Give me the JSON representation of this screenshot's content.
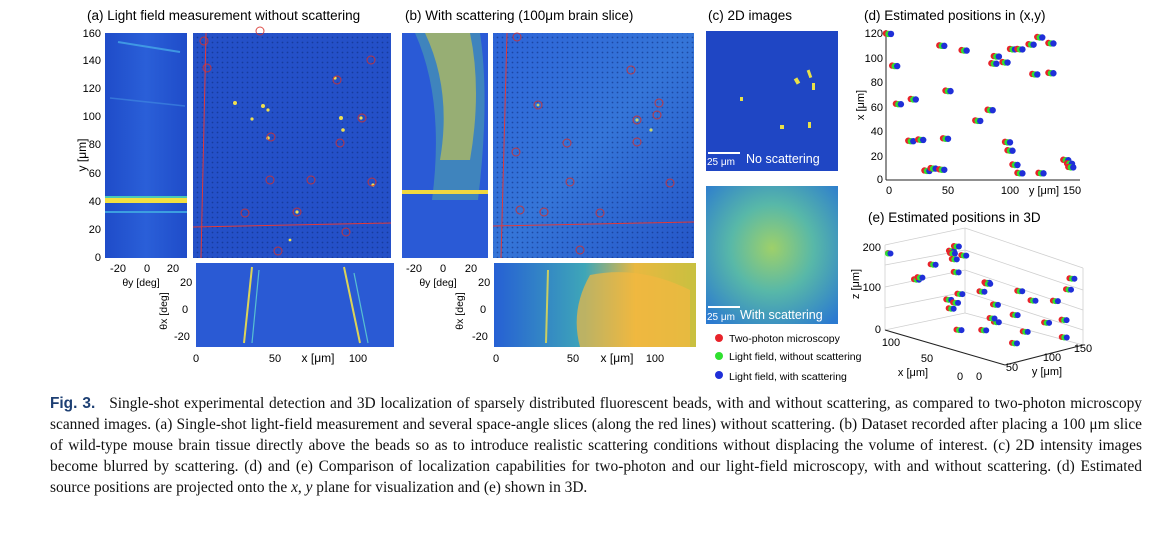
{
  "panels": {
    "a": {
      "title": "(a) Light field measurement without scattering"
    },
    "b": {
      "title": "(b) With scattering (100μm brain slice)"
    },
    "c": {
      "title": "(c) 2D images",
      "scale_bar": "25 μm",
      "label_top": "No scattering",
      "label_bottom": "With scattering"
    },
    "d": {
      "title": "(d) Estimated positions in (x,y)"
    },
    "e": {
      "title": "(e) Estimated positions in 3D"
    }
  },
  "axes": {
    "a_left": {
      "ylabel": "y [μm]",
      "xlabel": "θy [deg]",
      "yticks": [
        "160",
        "140",
        "120",
        "100",
        "80",
        "60",
        "40",
        "20",
        "0"
      ],
      "xticks": [
        "-20",
        "0",
        "20"
      ]
    },
    "a_bottom": {
      "ylabel": "θx [deg]",
      "xlabel": "x [μm]",
      "yticks": [
        "20",
        "0",
        "-20"
      ],
      "xticks": [
        "0",
        "50",
        "100"
      ]
    },
    "b_left": {
      "xlabel": "θy [deg]",
      "xticks": [
        "-20",
        "0",
        "20"
      ]
    },
    "b_bottom": {
      "ylabel": "θx [deg]",
      "xlabel": "x [μm]",
      "yticks": [
        "20",
        "0",
        "-20"
      ],
      "xticks": [
        "0",
        "50",
        "100"
      ]
    },
    "d": {
      "ylabel": "x [μm]",
      "xlabel": "y [μm]",
      "yticks": [
        "120",
        "100",
        "80",
        "60",
        "40",
        "20",
        "0"
      ],
      "xticks": [
        "0",
        "50",
        "100",
        "150"
      ]
    },
    "e": {
      "zlabel": "z [μm]",
      "xlabel": "x [μm]",
      "ylabel": "y [μm]",
      "zticks": [
        "200",
        "100",
        "0"
      ],
      "xticks": [
        "100",
        "50",
        "0"
      ],
      "yticks": [
        "0",
        "50",
        "100",
        "150"
      ]
    }
  },
  "legend": [
    {
      "label": "Two-photon microscopy",
      "color": "#e8232a"
    },
    {
      "label": "Light field, without scattering",
      "color": "#2fe02f"
    },
    {
      "label": "Light field, with scattering",
      "color": "#1f2fd8"
    }
  ],
  "chart_data": {
    "type": "scatter",
    "title": "(d) Estimated positions in (x,y)",
    "xlabel": "y [μm]",
    "ylabel": "x [μm]",
    "xlim": [
      0,
      150
    ],
    "ylim": [
      0,
      125
    ],
    "beads": [
      [
        2,
        123
      ],
      [
        7,
        96
      ],
      [
        10,
        64
      ],
      [
        22,
        68
      ],
      [
        20,
        33
      ],
      [
        28,
        34
      ],
      [
        33,
        8
      ],
      [
        38,
        10
      ],
      [
        45,
        9
      ],
      [
        48,
        35
      ],
      [
        45,
        113
      ],
      [
        50,
        75
      ],
      [
        63,
        109
      ],
      [
        74,
        50
      ],
      [
        84,
        59
      ],
      [
        87,
        98
      ],
      [
        89,
        104
      ],
      [
        96,
        99
      ],
      [
        98,
        32
      ],
      [
        100,
        25
      ],
      [
        102,
        110
      ],
      [
        104,
        13
      ],
      [
        108,
        6
      ],
      [
        108,
        110
      ],
      [
        117,
        114
      ],
      [
        120,
        89
      ],
      [
        124,
        120
      ],
      [
        125,
        6
      ],
      [
        133,
        115
      ],
      [
        133,
        90
      ],
      [
        145,
        17
      ],
      [
        148,
        14
      ],
      [
        149,
        11
      ]
    ]
  },
  "caption": {
    "label": "Fig. 3.",
    "text_1": "Single-shot experimental detection and 3D localization of sparsely distributed fluorescent beads, with and without scattering, as compared to two-photon microscopy scanned images. (a) Single-shot light-field measurement and several space-angle slices (along the red lines) without scattering. (b) Dataset recorded after placing a 100 μm slice of wild-type mouse brain tissue directly above the beads so as to introduce realistic scattering conditions without displacing the volume of interest. (c) 2D intensity images become blurred by scattering. (d) and (e) Comparison of localization capabilities for two-photon and our light-field microscopy, with and without scattering. (d) Estimated source positions are projected onto the ",
    "var_x": "x",
    "comma": ", ",
    "var_y": "y",
    "text_2": " plane for visualization and (e) shown in 3D."
  }
}
